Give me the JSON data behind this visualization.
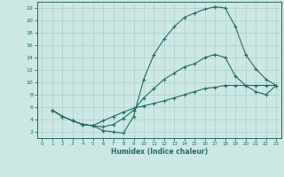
{
  "xlabel": "Humidex (Indice chaleur)",
  "background_color": "#cce8e4",
  "grid_color": "#aacfcb",
  "line_color": "#1f6b65",
  "xlim": [
    -0.5,
    23.5
  ],
  "ylim": [
    1,
    23
  ],
  "xticks": [
    0,
    1,
    2,
    3,
    4,
    5,
    6,
    7,
    8,
    9,
    10,
    11,
    12,
    13,
    14,
    15,
    16,
    17,
    18,
    19,
    20,
    21,
    22,
    23
  ],
  "yticks": [
    2,
    4,
    6,
    8,
    10,
    12,
    14,
    16,
    18,
    20,
    22
  ],
  "curve1_x": [
    1,
    2,
    3,
    4,
    5,
    6,
    7,
    8,
    9,
    10,
    11,
    12,
    13,
    14,
    15,
    16,
    17,
    18,
    19,
    20,
    21,
    22,
    23
  ],
  "curve1_y": [
    5.5,
    4.5,
    3.8,
    3.2,
    3.0,
    2.2,
    2.0,
    1.8,
    4.5,
    10.5,
    14.5,
    17.0,
    19.0,
    20.5,
    21.2,
    21.8,
    22.2,
    22.0,
    19.0,
    14.5,
    12.2,
    10.5,
    9.5
  ],
  "curve2_x": [
    1,
    2,
    3,
    4,
    5,
    6,
    7,
    8,
    9,
    10,
    11,
    12,
    13,
    14,
    15,
    16,
    17,
    18,
    19,
    20,
    21,
    22,
    23
  ],
  "curve2_y": [
    5.5,
    4.5,
    3.8,
    3.2,
    3.0,
    2.8,
    3.2,
    4.2,
    5.5,
    7.5,
    9.0,
    10.5,
    11.5,
    12.5,
    13.0,
    14.0,
    14.5,
    14.0,
    11.0,
    9.5,
    8.5,
    8.0,
    9.5
  ],
  "curve3_x": [
    1,
    2,
    3,
    4,
    5,
    6,
    7,
    8,
    9,
    10,
    11,
    12,
    13,
    14,
    15,
    16,
    17,
    18,
    19,
    20,
    21,
    22,
    23
  ],
  "curve3_y": [
    5.5,
    4.5,
    3.8,
    3.2,
    3.0,
    3.8,
    4.5,
    5.2,
    5.8,
    6.2,
    6.6,
    7.0,
    7.5,
    8.0,
    8.5,
    9.0,
    9.2,
    9.5,
    9.5,
    9.5,
    9.5,
    9.5,
    9.5
  ]
}
